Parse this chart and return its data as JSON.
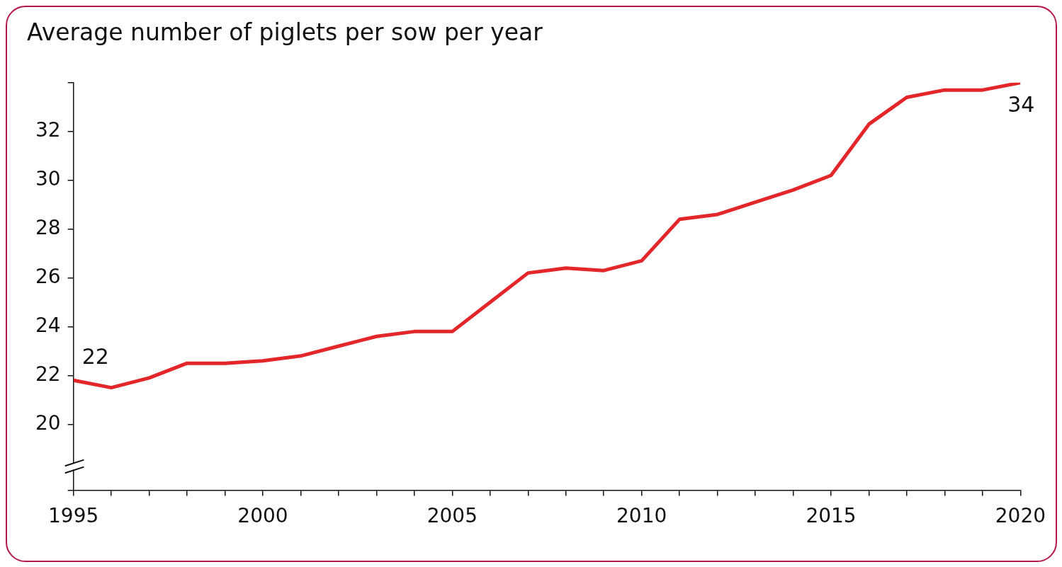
{
  "chart_data": {
    "type": "line",
    "title": "Average number of piglets per sow per year",
    "x": [
      1995,
      1996,
      1997,
      1998,
      1999,
      2000,
      2001,
      2002,
      2003,
      2004,
      2005,
      2006,
      2007,
      2008,
      2009,
      2010,
      2011,
      2012,
      2013,
      2014,
      2015,
      2016,
      2017,
      2018,
      2019,
      2020
    ],
    "series": [
      {
        "color": "#e3262a",
        "values": [
          21.8,
          21.5,
          21.9,
          22.5,
          22.5,
          22.6,
          22.8,
          23.2,
          23.6,
          23.8,
          23.8,
          25.0,
          26.2,
          26.4,
          26.3,
          26.7,
          28.4,
          28.6,
          29.1,
          29.6,
          30.2,
          32.3,
          33.4,
          33.7,
          33.7,
          34.0
        ]
      }
    ],
    "xlim": [
      1995,
      2020
    ],
    "xticks": [
      1995,
      {
        "value": 1996,
        "label": null
      },
      {
        "value": 1997,
        "label": null
      },
      {
        "value": 1998,
        "label": null
      },
      {
        "value": 1999,
        "label": null
      },
      2000,
      {
        "value": 2001,
        "label": null
      },
      {
        "value": 2002,
        "label": null
      },
      {
        "value": 2003,
        "label": null
      },
      {
        "value": 2004,
        "label": null
      },
      2005,
      {
        "value": 2006,
        "label": null
      },
      {
        "value": 2007,
        "label": null
      },
      {
        "value": 2008,
        "label": null
      },
      {
        "value": 2009,
        "label": null
      },
      2010,
      {
        "value": 2011,
        "label": null
      },
      {
        "value": 2012,
        "label": null
      },
      {
        "value": 2013,
        "label": null
      },
      {
        "value": 2014,
        "label": null
      },
      2015,
      {
        "value": 2016,
        "label": null
      },
      {
        "value": 2017,
        "label": null
      },
      {
        "value": 2018,
        "label": null
      },
      {
        "value": 2019,
        "label": null
      },
      2020
    ],
    "ylim": [
      17.3,
      34
    ],
    "yticks": [
      {
        "value": 17.3,
        "label": null
      },
      20,
      22,
      24,
      26,
      28,
      30,
      32,
      {
        "value": 34,
        "label": null
      }
    ],
    "annotations": [
      {
        "text": "22",
        "x": 1995,
        "y": 21.8
      },
      {
        "text": "34",
        "x": 2020,
        "y": 34.0
      }
    ],
    "grid": false,
    "legend": false,
    "marker": "none",
    "line_style": "solid"
  }
}
